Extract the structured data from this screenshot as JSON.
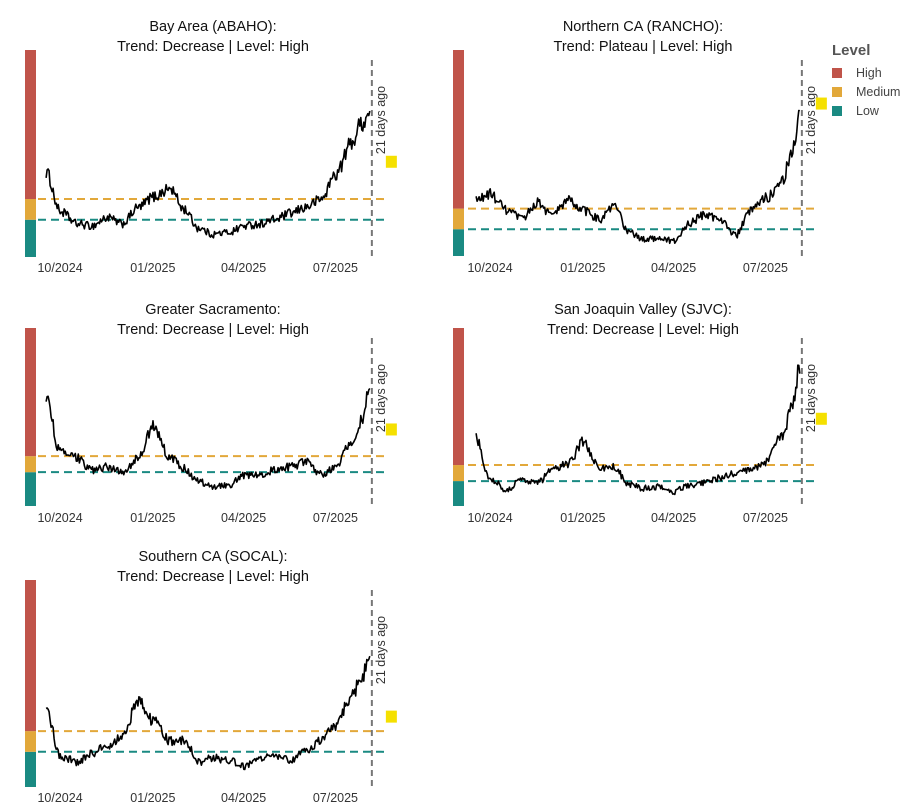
{
  "legend": {
    "title": "Level",
    "items": [
      {
        "label": "High",
        "color": "#c0544a"
      },
      {
        "label": "Medium",
        "color": "#e2a83a"
      },
      {
        "label": "Low",
        "color": "#1a8a82"
      }
    ]
  },
  "chart_data": [
    {
      "type": "line",
      "region": "Bay Area (ABAHO):",
      "subtitle": "Trend: Decrease  | Level: High",
      "xlim": [
        "2024-09-23",
        "2025-09-05"
      ],
      "ylim": [
        0,
        1
      ],
      "x_ticks": [
        {
          "date": "2024-10-01",
          "label": "10/2024"
        },
        {
          "date": "2025-01-01",
          "label": "01/2025"
        },
        {
          "date": "2025-04-01",
          "label": "04/2025"
        },
        {
          "date": "2025-07-01",
          "label": "07/2025"
        }
      ],
      "bands": {
        "low": [
          0,
          0.18
        ],
        "medium": [
          0.18,
          0.28
        ],
        "high": [
          0.28,
          1
        ]
      },
      "medium_threshold": 0.28,
      "low_threshold": 0.18,
      "marker_date": "2025-08-20",
      "annotation": "21 days ago",
      "latest_value": 0.46,
      "series": {
        "name": "Wastewater level",
        "dates": [
          "2024-10-01",
          "2024-10-15",
          "2024-11-01",
          "2024-11-15",
          "2024-12-01",
          "2024-12-15",
          "2025-01-01",
          "2025-01-15",
          "2025-02-01",
          "2025-02-15",
          "2025-03-01",
          "2025-03-15",
          "2025-04-01",
          "2025-04-15",
          "2025-05-01",
          "2025-05-15",
          "2025-06-01",
          "2025-06-15",
          "2025-07-01",
          "2025-07-15",
          "2025-08-01",
          "2025-08-10",
          "2025-08-18"
        ],
        "values": [
          0.41,
          0.22,
          0.16,
          0.15,
          0.19,
          0.16,
          0.24,
          0.29,
          0.33,
          0.23,
          0.14,
          0.11,
          0.12,
          0.15,
          0.16,
          0.18,
          0.21,
          0.24,
          0.28,
          0.4,
          0.56,
          0.65,
          0.69
        ]
      }
    },
    {
      "type": "line",
      "region": "Northern CA (RANCHO):",
      "subtitle": "Trend: Plateau  | Level: High",
      "xlim": [
        "2024-09-23",
        "2025-09-05"
      ],
      "ylim": [
        0,
        1
      ],
      "x_ticks": [
        {
          "date": "2024-10-01",
          "label": "10/2024"
        },
        {
          "date": "2025-01-01",
          "label": "01/2025"
        },
        {
          "date": "2025-04-01",
          "label": "04/2025"
        },
        {
          "date": "2025-07-01",
          "label": "07/2025"
        }
      ],
      "bands": {
        "low": [
          0,
          0.13
        ],
        "medium": [
          0.13,
          0.23
        ],
        "high": [
          0.23,
          1
        ]
      },
      "medium_threshold": 0.23,
      "low_threshold": 0.13,
      "marker_date": "2025-08-20",
      "annotation": "21 days ago",
      "latest_value": 0.74,
      "series": {
        "name": "Wastewater level",
        "dates": [
          "2024-10-01",
          "2024-10-15",
          "2024-11-01",
          "2024-11-15",
          "2024-12-01",
          "2024-12-15",
          "2025-01-01",
          "2025-01-15",
          "2025-02-01",
          "2025-02-15",
          "2025-03-01",
          "2025-03-15",
          "2025-04-01",
          "2025-04-15",
          "2025-05-01",
          "2025-05-15",
          "2025-06-01",
          "2025-06-15",
          "2025-07-01",
          "2025-07-15",
          "2025-08-01",
          "2025-08-10",
          "2025-08-18"
        ],
        "values": [
          0.27,
          0.3,
          0.22,
          0.18,
          0.26,
          0.2,
          0.27,
          0.22,
          0.18,
          0.24,
          0.12,
          0.08,
          0.09,
          0.07,
          0.16,
          0.2,
          0.18,
          0.1,
          0.22,
          0.28,
          0.37,
          0.5,
          0.7
        ]
      }
    },
    {
      "type": "line",
      "region": "Greater Sacramento:",
      "subtitle": "Trend: Decrease  | Level: High",
      "xlim": [
        "2024-09-23",
        "2025-09-05"
      ],
      "ylim": [
        0,
        1
      ],
      "x_ticks": [
        {
          "date": "2024-10-01",
          "label": "10/2024"
        },
        {
          "date": "2025-01-01",
          "label": "01/2025"
        },
        {
          "date": "2025-04-01",
          "label": "04/2025"
        },
        {
          "date": "2025-07-01",
          "label": "07/2025"
        }
      ],
      "bands": {
        "low": [
          0,
          0.19
        ],
        "medium": [
          0.19,
          0.28
        ],
        "high": [
          0.28,
          1
        ]
      },
      "medium_threshold": 0.28,
      "low_threshold": 0.19,
      "marker_date": "2025-08-20",
      "annotation": "21 days ago",
      "latest_value": 0.43,
      "series": {
        "name": "Wastewater level",
        "dates": [
          "2024-10-01",
          "2024-10-15",
          "2024-11-01",
          "2024-11-15",
          "2024-12-01",
          "2024-12-15",
          "2025-01-01",
          "2025-01-15",
          "2025-02-01",
          "2025-02-15",
          "2025-03-01",
          "2025-03-15",
          "2025-04-01",
          "2025-04-15",
          "2025-05-01",
          "2025-05-15",
          "2025-06-01",
          "2025-06-15",
          "2025-07-01",
          "2025-07-15",
          "2025-08-01",
          "2025-08-10",
          "2025-08-18"
        ],
        "values": [
          0.61,
          0.3,
          0.27,
          0.2,
          0.22,
          0.19,
          0.27,
          0.45,
          0.27,
          0.21,
          0.14,
          0.11,
          0.12,
          0.17,
          0.18,
          0.2,
          0.22,
          0.25,
          0.18,
          0.22,
          0.37,
          0.48,
          0.66
        ]
      }
    },
    {
      "type": "line",
      "region": "San Joaquin Valley (SJVC):",
      "subtitle": "Trend: Decrease  | Level: High",
      "xlim": [
        "2024-09-23",
        "2025-09-05"
      ],
      "ylim": [
        0,
        1
      ],
      "x_ticks": [
        {
          "date": "2024-10-01",
          "label": "10/2024"
        },
        {
          "date": "2025-01-01",
          "label": "01/2025"
        },
        {
          "date": "2025-04-01",
          "label": "04/2025"
        },
        {
          "date": "2025-07-01",
          "label": "07/2025"
        }
      ],
      "bands": {
        "low": [
          0,
          0.14
        ],
        "medium": [
          0.14,
          0.23
        ],
        "high": [
          0.23,
          1
        ]
      },
      "medium_threshold": 0.23,
      "low_threshold": 0.14,
      "marker_date": "2025-08-20",
      "annotation": "21 days ago",
      "latest_value": 0.49,
      "series": {
        "name": "Wastewater level",
        "dates": [
          "2024-10-01",
          "2024-10-15",
          "2024-11-01",
          "2024-11-15",
          "2024-12-01",
          "2024-12-15",
          "2025-01-01",
          "2025-01-15",
          "2025-02-01",
          "2025-02-15",
          "2025-03-01",
          "2025-03-15",
          "2025-04-01",
          "2025-04-15",
          "2025-05-01",
          "2025-05-15",
          "2025-06-01",
          "2025-06-15",
          "2025-07-01",
          "2025-07-15",
          "2025-08-01",
          "2025-08-10",
          "2025-08-18"
        ],
        "values": [
          0.38,
          0.15,
          0.09,
          0.15,
          0.13,
          0.2,
          0.24,
          0.36,
          0.21,
          0.22,
          0.12,
          0.1,
          0.11,
          0.08,
          0.12,
          0.13,
          0.16,
          0.18,
          0.2,
          0.25,
          0.4,
          0.55,
          0.78
        ]
      }
    },
    {
      "type": "line",
      "region": "Southern CA (SOCAL):",
      "subtitle": "Trend: Decrease  | Level: High",
      "xlim": [
        "2024-09-23",
        "2025-09-05"
      ],
      "ylim": [
        0,
        1
      ],
      "x_ticks": [
        {
          "date": "2024-10-01",
          "label": "10/2024"
        },
        {
          "date": "2025-01-01",
          "label": "01/2025"
        },
        {
          "date": "2025-04-01",
          "label": "04/2025"
        },
        {
          "date": "2025-07-01",
          "label": "07/2025"
        }
      ],
      "bands": {
        "low": [
          0,
          0.17
        ],
        "medium": [
          0.17,
          0.27
        ],
        "high": [
          0.27,
          1
        ]
      },
      "medium_threshold": 0.27,
      "low_threshold": 0.17,
      "marker_date": "2025-08-20",
      "annotation": "21 days ago",
      "latest_value": 0.34,
      "series": {
        "name": "Wastewater level",
        "dates": [
          "2024-10-01",
          "2024-10-15",
          "2024-11-01",
          "2024-11-15",
          "2024-12-01",
          "2024-12-15",
          "2025-01-01",
          "2025-01-15",
          "2025-02-01",
          "2025-02-15",
          "2025-03-01",
          "2025-03-15",
          "2025-04-01",
          "2025-04-15",
          "2025-05-01",
          "2025-05-15",
          "2025-06-01",
          "2025-06-15",
          "2025-07-01",
          "2025-07-15",
          "2025-08-01",
          "2025-08-10",
          "2025-08-18"
        ],
        "values": [
          0.38,
          0.15,
          0.12,
          0.16,
          0.2,
          0.24,
          0.42,
          0.32,
          0.22,
          0.23,
          0.12,
          0.14,
          0.13,
          0.1,
          0.14,
          0.15,
          0.13,
          0.17,
          0.23,
          0.3,
          0.45,
          0.53,
          0.62
        ]
      }
    }
  ]
}
